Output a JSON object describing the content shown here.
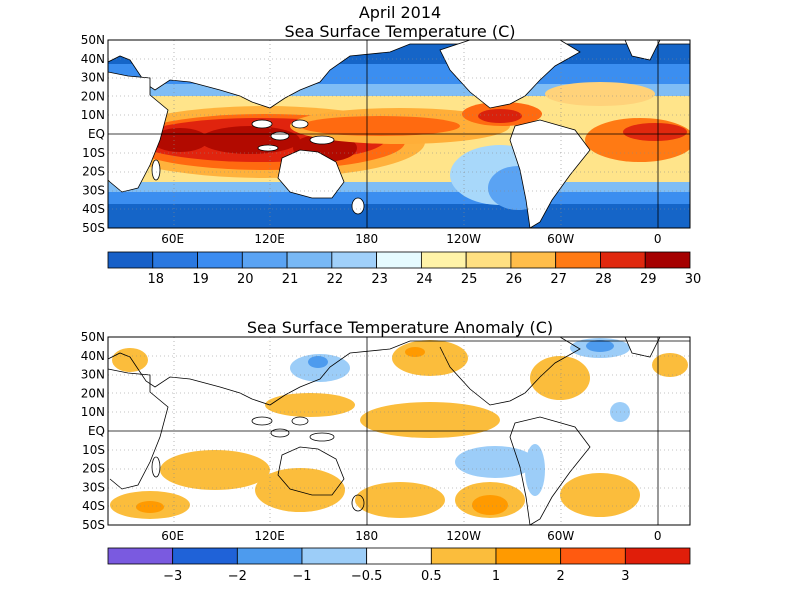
{
  "figure": {
    "title_line1": "April 2014",
    "title_line2": "Sea Surface Temperature (C)",
    "title_anom": "Sea Surface Temperature Anomaly (C)"
  },
  "axes": {
    "lat_labels": [
      "50N",
      "40N",
      "30N",
      "20N",
      "10N",
      "EQ",
      "10S",
      "20S",
      "30S",
      "40S",
      "50S"
    ],
    "lon_labels": [
      "60E",
      "120E",
      "180",
      "120W",
      "60W",
      "0"
    ]
  },
  "sst_colorbar": {
    "colors": [
      "#1760c8",
      "#2a78e0",
      "#3c8cf0",
      "#5aa3f3",
      "#78b8f5",
      "#a0d0fa",
      "#e6fbff",
      "#fff3a8",
      "#ffe082",
      "#ffbd4a",
      "#ff7a14",
      "#e0280e",
      "#a50000"
    ],
    "labels": [
      "18",
      "19",
      "20",
      "21",
      "22",
      "23",
      "24",
      "25",
      "26",
      "27",
      "28",
      "29",
      "30"
    ]
  },
  "anom_colorbar": {
    "colors": [
      "#7a5ae0",
      "#1f62d8",
      "#4d9bee",
      "#9ccdf8",
      "#ffffff",
      "#fbbd3c",
      "#ff9a00",
      "#ff5a10",
      "#e01e0a"
    ],
    "labels": [
      "−3",
      "−2",
      "−1",
      "−0.5",
      "0.5",
      "1",
      "2",
      "3"
    ]
  },
  "chart_data": [
    {
      "type": "heatmap",
      "title": "Sea Surface Temperature (C)",
      "period": "April 2014",
      "lat_range": [
        -50,
        50
      ],
      "lon_range": [
        20,
        380
      ],
      "color_levels": [
        18,
        19,
        20,
        21,
        22,
        23,
        24,
        25,
        26,
        27,
        28,
        29,
        30
      ]
    },
    {
      "type": "heatmap",
      "title": "Sea Surface Temperature Anomaly (C)",
      "period": "April 2014",
      "lat_range": [
        -50,
        50
      ],
      "lon_range": [
        20,
        380
      ],
      "color_levels": [
        -3,
        -2,
        -1,
        -0.5,
        0.5,
        1,
        2,
        3
      ]
    }
  ]
}
